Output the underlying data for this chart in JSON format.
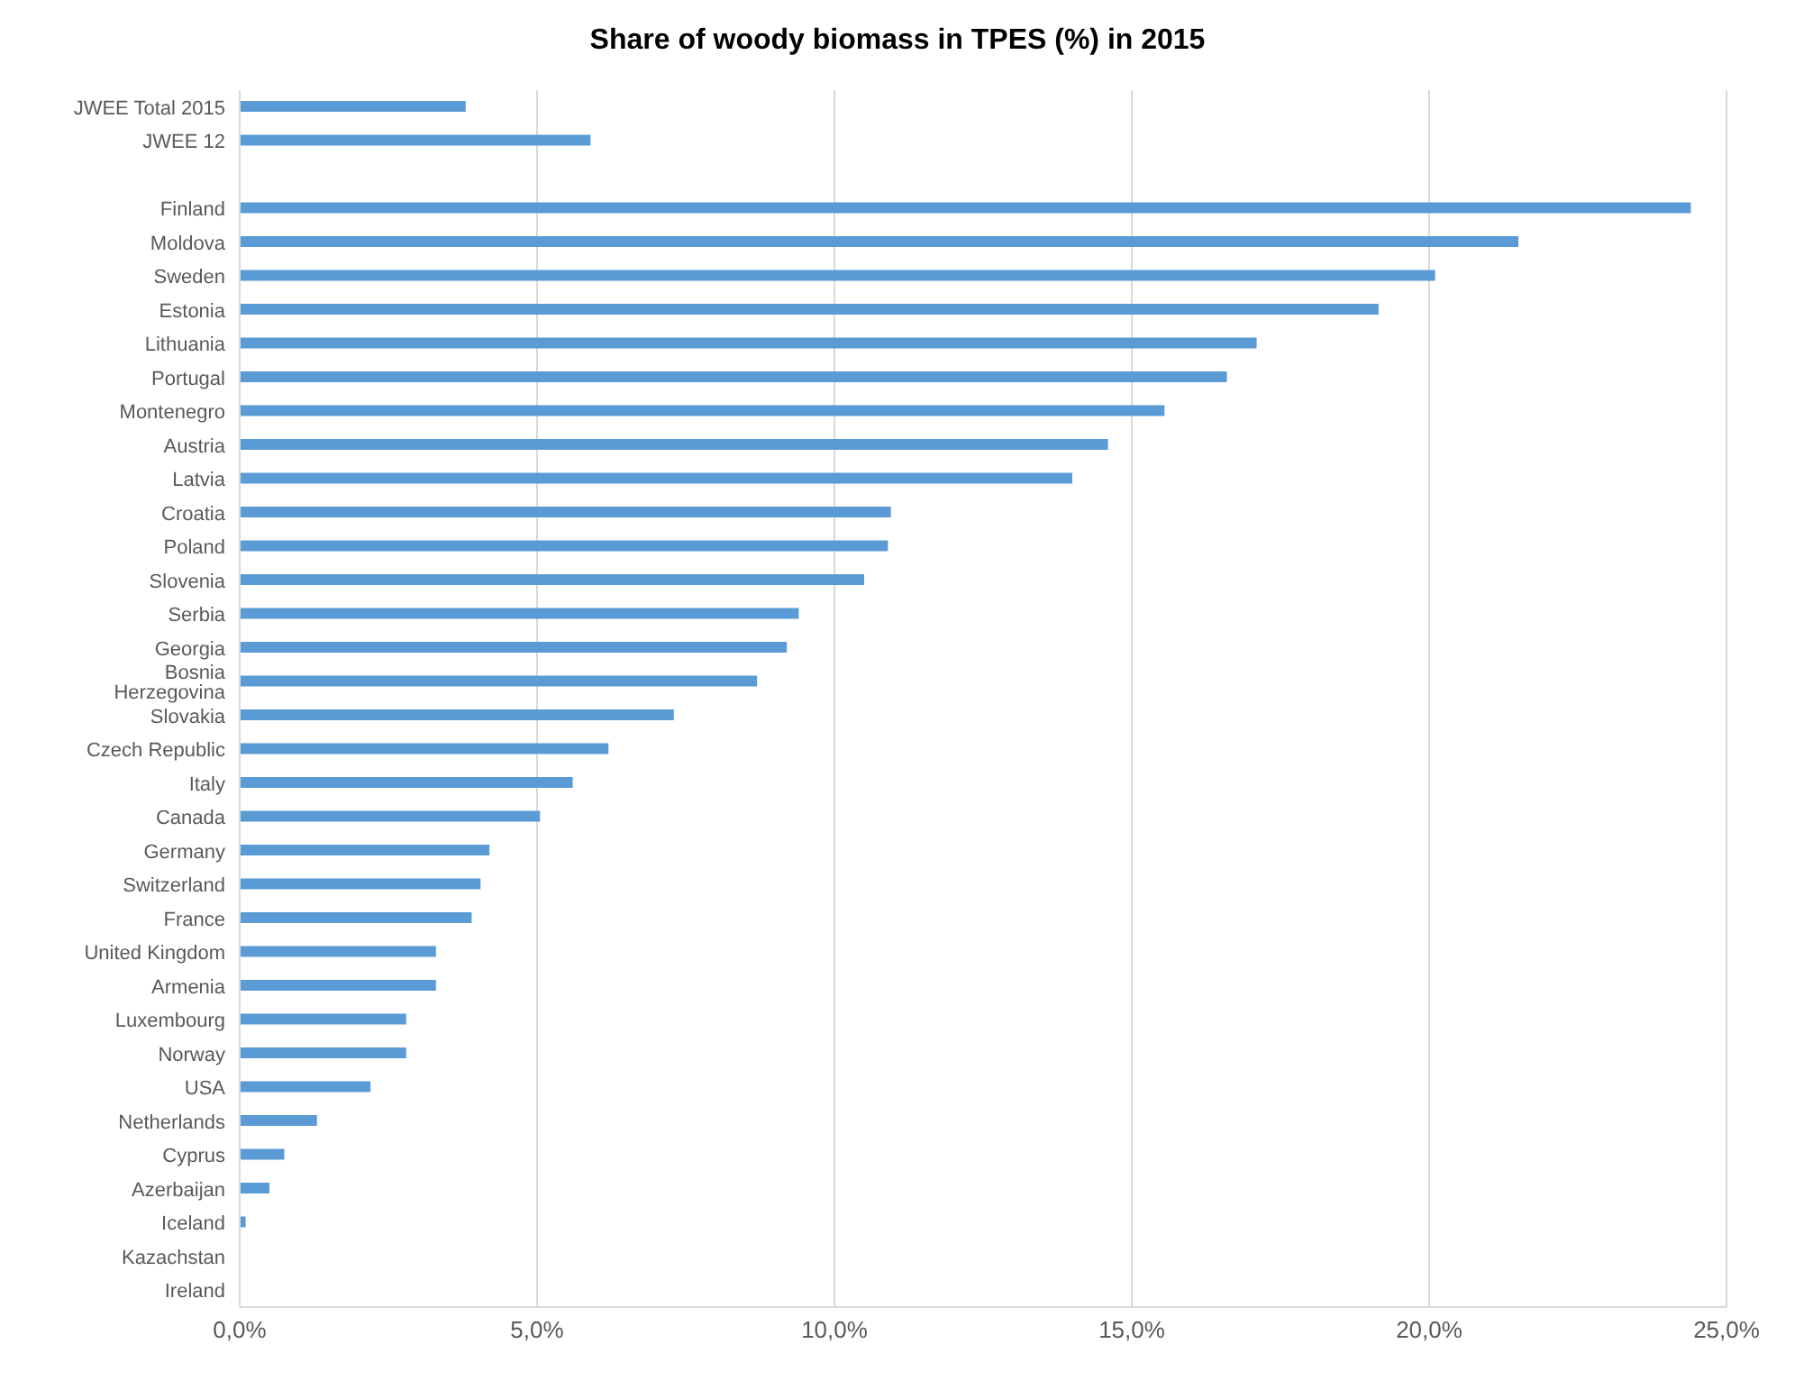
{
  "chart_data": {
    "type": "bar",
    "orientation": "horizontal",
    "title": "Share of woody biomass in TPES (%)  in 2015",
    "categories": [
      "JWEE Total 2015",
      "JWEE 12",
      null,
      "Finland",
      "Moldova",
      "Sweden",
      "Estonia",
      "Lithuania",
      "Portugal",
      "Montenegro",
      "Austria",
      "Latvia",
      "Croatia",
      "Poland",
      "Slovenia",
      "Serbia",
      "Georgia",
      "Bosnia Herzegovina",
      "Slovakia",
      "Czech Republic",
      "Italy",
      "Canada",
      "Germany",
      "Switzerland",
      "France",
      "United Kingdom",
      "Armenia",
      "Luxembourg",
      "Norway",
      "USA",
      "Netherlands",
      "Cyprus",
      "Azerbaijan",
      "Iceland",
      "Kazachstan",
      "Ireland"
    ],
    "values": [
      3.8,
      5.9,
      null,
      24.4,
      21.5,
      20.1,
      19.15,
      17.1,
      16.6,
      15.55,
      14.6,
      14.0,
      10.95,
      10.9,
      10.5,
      9.4,
      9.2,
      8.7,
      7.3,
      6.2,
      5.6,
      5.05,
      4.2,
      4.05,
      3.9,
      3.3,
      3.3,
      2.8,
      2.8,
      2.2,
      1.3,
      0.75,
      0.5,
      0.1,
      0,
      0
    ],
    "color": "#5b9bd5",
    "xlim": [
      0,
      25
    ],
    "xticks": [
      {
        "value": 0,
        "label": "0,0%"
      },
      {
        "value": 5,
        "label": "5,0%"
      },
      {
        "value": 10,
        "label": "10,0%"
      },
      {
        "value": 15,
        "label": "15,0%"
      },
      {
        "value": 20,
        "label": "20,0%"
      },
      {
        "value": 25,
        "label": "25,0%"
      }
    ],
    "grid": "x",
    "legend": false
  }
}
